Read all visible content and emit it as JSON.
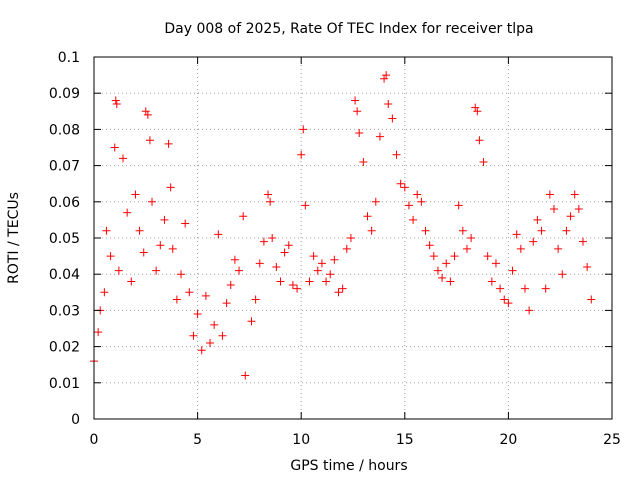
{
  "chart_data": {
    "type": "scatter",
    "title": "Day 008 of 2025, Rate Of TEC Index for receiver tlpa",
    "xlabel": "GPS time / hours",
    "ylabel": "ROTI / TECUs",
    "xlim": [
      0,
      25
    ],
    "ylim": [
      0,
      0.1
    ],
    "xticks": [
      0,
      5,
      10,
      15,
      20,
      25
    ],
    "xtick_labels": [
      "0",
      "5",
      "10",
      "15",
      "20",
      "25"
    ],
    "yticks": [
      0,
      0.01,
      0.02,
      0.03,
      0.04,
      0.05,
      0.06,
      0.07,
      0.08,
      0.09,
      0.1
    ],
    "ytick_labels": [
      "0",
      "0.01",
      "0.02",
      "0.03",
      "0.04",
      "0.05",
      "0.06",
      "0.07",
      "0.08",
      "0.09",
      "0.1"
    ],
    "grid": true,
    "marker": "+",
    "color": "#ff0000",
    "series": [
      {
        "x": [
          0.0,
          0.2,
          0.3,
          0.5,
          0.6,
          0.8,
          1.0,
          1.05,
          1.1,
          1.2,
          1.4,
          1.6,
          1.8,
          2.0,
          2.2,
          2.4,
          2.5,
          2.6,
          2.7,
          2.8,
          3.0,
          3.2,
          3.4,
          3.6,
          3.7,
          3.8,
          4.0,
          4.2,
          4.4,
          4.6,
          4.8,
          5.0,
          5.2,
          5.4,
          5.6,
          5.8,
          6.0,
          6.2,
          6.4,
          6.6,
          6.8,
          7.0,
          7.2,
          7.3,
          7.6,
          7.8,
          8.0,
          8.2,
          8.4,
          8.5,
          8.6,
          8.8,
          9.0,
          9.2,
          9.4,
          9.6,
          9.8,
          10.0,
          10.1,
          10.2,
          10.4,
          10.6,
          10.8,
          11.0,
          11.2,
          11.4,
          11.6,
          11.8,
          12.0,
          12.2,
          12.4,
          12.6,
          12.7,
          12.8,
          13.0,
          13.2,
          13.4,
          13.6,
          13.8,
          14.0,
          14.1,
          14.2,
          14.4,
          14.6,
          14.8,
          15.0,
          15.2,
          15.4,
          15.6,
          15.8,
          16.0,
          16.2,
          16.4,
          16.6,
          16.8,
          17.0,
          17.2,
          17.4,
          17.6,
          17.8,
          18.0,
          18.2,
          18.4,
          18.5,
          18.6,
          18.8,
          19.0,
          19.2,
          19.4,
          19.6,
          19.8,
          20.0,
          20.2,
          20.4,
          20.6,
          20.8,
          21.0,
          21.2,
          21.4,
          21.6,
          21.8,
          22.0,
          22.2,
          22.4,
          22.6,
          22.8,
          23.0,
          23.2,
          23.4,
          23.6,
          23.8,
          24.0
        ],
        "y": [
          0.016,
          0.024,
          0.03,
          0.035,
          0.052,
          0.045,
          0.075,
          0.088,
          0.087,
          0.041,
          0.072,
          0.057,
          0.038,
          0.062,
          0.052,
          0.046,
          0.085,
          0.084,
          0.077,
          0.06,
          0.041,
          0.048,
          0.055,
          0.076,
          0.064,
          0.047,
          0.033,
          0.04,
          0.054,
          0.035,
          0.023,
          0.029,
          0.019,
          0.034,
          0.021,
          0.026,
          0.051,
          0.023,
          0.032,
          0.037,
          0.044,
          0.041,
          0.056,
          0.012,
          0.027,
          0.033,
          0.043,
          0.049,
          0.062,
          0.06,
          0.05,
          0.042,
          0.038,
          0.046,
          0.048,
          0.037,
          0.036,
          0.073,
          0.08,
          0.059,
          0.038,
          0.045,
          0.041,
          0.043,
          0.038,
          0.04,
          0.044,
          0.035,
          0.036,
          0.047,
          0.05,
          0.088,
          0.085,
          0.079,
          0.071,
          0.056,
          0.052,
          0.06,
          0.078,
          0.094,
          0.095,
          0.087,
          0.083,
          0.073,
          0.065,
          0.064,
          0.059,
          0.055,
          0.062,
          0.06,
          0.052,
          0.048,
          0.045,
          0.041,
          0.039,
          0.043,
          0.038,
          0.045,
          0.059,
          0.052,
          0.047,
          0.05,
          0.086,
          0.085,
          0.077,
          0.071,
          0.045,
          0.038,
          0.043,
          0.036,
          0.033,
          0.032,
          0.041,
          0.051,
          0.047,
          0.036,
          0.03,
          0.049,
          0.055,
          0.052,
          0.036,
          0.062,
          0.058,
          0.047,
          0.04,
          0.052,
          0.056,
          0.062,
          0.058,
          0.049,
          0.042,
          0.033
        ]
      }
    ]
  }
}
